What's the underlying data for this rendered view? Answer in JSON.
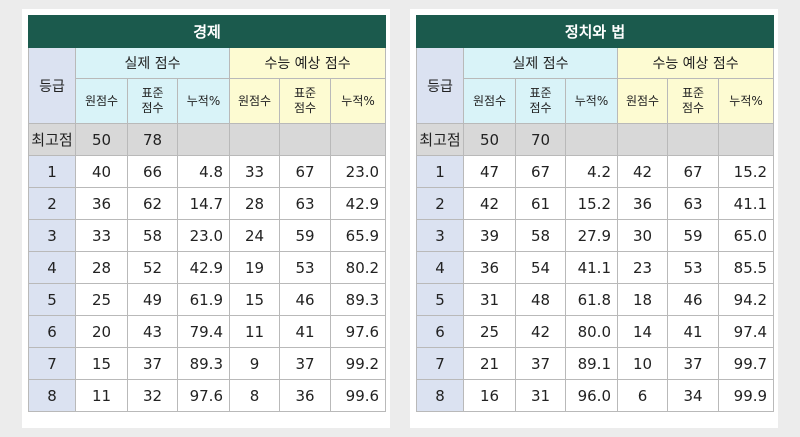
{
  "tables": [
    {
      "title": "경제",
      "grade_header": "등급",
      "group_actual": "실제 점수",
      "group_expected": "수능 예상 점수",
      "subheaders": [
        "원점수",
        "표준\n점수",
        "누적%",
        "원점수",
        "표준\n점수",
        "누적%"
      ],
      "top_row": {
        "label": "최고점",
        "raw": "50",
        "std": "78",
        "pct": "",
        "exp_raw": "",
        "exp_std": "",
        "exp_pct": ""
      },
      "rows": [
        {
          "grade": "1",
          "raw": "40",
          "std": "66",
          "pct": "4.8",
          "exp_raw": "33",
          "exp_std": "67",
          "exp_pct": "23.0"
        },
        {
          "grade": "2",
          "raw": "36",
          "std": "62",
          "pct": "14.7",
          "exp_raw": "28",
          "exp_std": "63",
          "exp_pct": "42.9"
        },
        {
          "grade": "3",
          "raw": "33",
          "std": "58",
          "pct": "23.0",
          "exp_raw": "24",
          "exp_std": "59",
          "exp_pct": "65.9"
        },
        {
          "grade": "4",
          "raw": "28",
          "std": "52",
          "pct": "42.9",
          "exp_raw": "19",
          "exp_std": "53",
          "exp_pct": "80.2"
        },
        {
          "grade": "5",
          "raw": "25",
          "std": "49",
          "pct": "61.9",
          "exp_raw": "15",
          "exp_std": "46",
          "exp_pct": "89.3"
        },
        {
          "grade": "6",
          "raw": "20",
          "std": "43",
          "pct": "79.4",
          "exp_raw": "11",
          "exp_std": "41",
          "exp_pct": "97.6"
        },
        {
          "grade": "7",
          "raw": "15",
          "std": "37",
          "pct": "89.3",
          "exp_raw": "9",
          "exp_std": "37",
          "exp_pct": "99.2"
        },
        {
          "grade": "8",
          "raw": "11",
          "std": "32",
          "pct": "97.6",
          "exp_raw": "8",
          "exp_std": "36",
          "exp_pct": "99.6"
        }
      ]
    },
    {
      "title": "정치와 법",
      "grade_header": "등급",
      "group_actual": "실제 점수",
      "group_expected": "수능 예상 점수",
      "subheaders": [
        "원점수",
        "표준\n점수",
        "누적%",
        "원점수",
        "표준\n점수",
        "누적%"
      ],
      "top_row": {
        "label": "최고점",
        "raw": "50",
        "std": "70",
        "pct": "",
        "exp_raw": "",
        "exp_std": "",
        "exp_pct": ""
      },
      "rows": [
        {
          "grade": "1",
          "raw": "47",
          "std": "67",
          "pct": "4.2",
          "exp_raw": "42",
          "exp_std": "67",
          "exp_pct": "15.2"
        },
        {
          "grade": "2",
          "raw": "42",
          "std": "61",
          "pct": "15.2",
          "exp_raw": "36",
          "exp_std": "63",
          "exp_pct": "41.1"
        },
        {
          "grade": "3",
          "raw": "39",
          "std": "58",
          "pct": "27.9",
          "exp_raw": "30",
          "exp_std": "59",
          "exp_pct": "65.0"
        },
        {
          "grade": "4",
          "raw": "36",
          "std": "54",
          "pct": "41.1",
          "exp_raw": "23",
          "exp_std": "53",
          "exp_pct": "85.5"
        },
        {
          "grade": "5",
          "raw": "31",
          "std": "48",
          "pct": "61.8",
          "exp_raw": "18",
          "exp_std": "46",
          "exp_pct": "94.2"
        },
        {
          "grade": "6",
          "raw": "25",
          "std": "42",
          "pct": "80.0",
          "exp_raw": "14",
          "exp_std": "41",
          "exp_pct": "97.4"
        },
        {
          "grade": "7",
          "raw": "21",
          "std": "37",
          "pct": "89.1",
          "exp_raw": "10",
          "exp_std": "37",
          "exp_pct": "99.7"
        },
        {
          "grade": "8",
          "raw": "16",
          "std": "31",
          "pct": "96.0",
          "exp_raw": "6",
          "exp_std": "34",
          "exp_pct": "99.9"
        }
      ]
    }
  ]
}
